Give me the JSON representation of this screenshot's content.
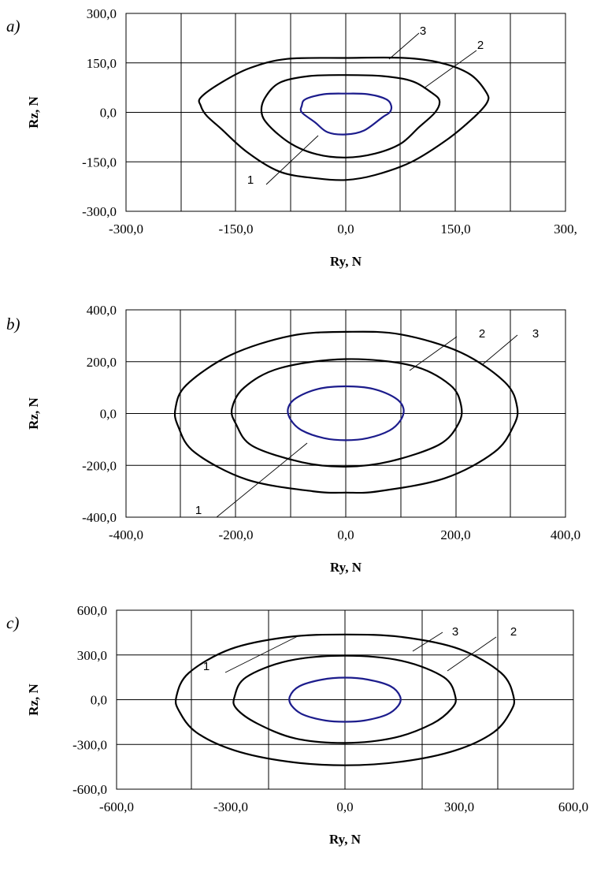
{
  "chart_data": [
    {
      "type": "line",
      "panel_label": "a)",
      "xlabel": "Ry, N",
      "ylabel": "Rz, N",
      "xlim": [
        -300,
        300
      ],
      "ylim": [
        -300,
        300
      ],
      "x_tick_labels": [
        "-300,0",
        "-150,0",
        "0,0",
        "150,0",
        "300,"
      ],
      "y_tick_labels": [
        "300,0",
        "150,0",
        "0,0",
        "-150,0",
        "-300,0"
      ],
      "grid": true,
      "series": [
        {
          "name": "1",
          "color": "#1c1c8c",
          "points": [
            [
              -60,
              20
            ],
            [
              -55,
              40
            ],
            [
              -30,
              55
            ],
            [
              0,
              57
            ],
            [
              30,
              55
            ],
            [
              55,
              40
            ],
            [
              62,
              20
            ],
            [
              60,
              0
            ],
            [
              50,
              -15
            ],
            [
              25,
              -55
            ],
            [
              0,
              -67
            ],
            [
              -25,
              -60
            ],
            [
              -42,
              -30
            ],
            [
              -60,
              0
            ]
          ]
        },
        {
          "name": "2",
          "color": "#000000",
          "points": [
            [
              -110,
              45
            ],
            [
              -90,
              90
            ],
            [
              -50,
              110
            ],
            [
              0,
              113
            ],
            [
              50,
              110
            ],
            [
              90,
              95
            ],
            [
              117,
              60
            ],
            [
              128,
              35
            ],
            [
              122,
              0
            ],
            [
              100,
              -45
            ],
            [
              75,
              -95
            ],
            [
              40,
              -125
            ],
            [
              0,
              -137
            ],
            [
              -40,
              -127
            ],
            [
              -75,
              -95
            ],
            [
              -105,
              -40
            ],
            [
              -115,
              0
            ]
          ]
        },
        {
          "name": "3",
          "color": "#000000",
          "points": [
            [
              -198,
              45
            ],
            [
              -170,
              90
            ],
            [
              -130,
              135
            ],
            [
              -80,
              162
            ],
            [
              0,
              165
            ],
            [
              80,
              165
            ],
            [
              130,
              150
            ],
            [
              170,
              115
            ],
            [
              192,
              60
            ],
            [
              193,
              30
            ],
            [
              175,
              -15
            ],
            [
              140,
              -80
            ],
            [
              90,
              -150
            ],
            [
              40,
              -190
            ],
            [
              0,
              -205
            ],
            [
              -40,
              -200
            ],
            [
              -90,
              -180
            ],
            [
              -135,
              -120
            ],
            [
              -170,
              -50
            ],
            [
              -190,
              -10
            ],
            [
              -198,
              20
            ]
          ]
        }
      ],
      "annotations": [
        "1",
        "2",
        "3"
      ]
    },
    {
      "type": "line",
      "panel_label": "b)",
      "xlabel": "Ry, N",
      "ylabel": "Rz, N",
      "xlim": [
        -400,
        400
      ],
      "ylim": [
        -400,
        400
      ],
      "x_tick_labels": [
        "-400,0",
        "-200,0",
        "0,0",
        "200,0",
        "400,0"
      ],
      "y_tick_labels": [
        "400,0",
        "200,0",
        "0,0",
        "-200,0",
        "-400,0"
      ],
      "grid": true,
      "series": [
        {
          "name": "1",
          "color": "#1c1c8c",
          "points": [
            [
              -105,
              20
            ],
            [
              -90,
              60
            ],
            [
              -50,
              95
            ],
            [
              0,
              105
            ],
            [
              50,
              95
            ],
            [
              90,
              60
            ],
            [
              105,
              20
            ],
            [
              100,
              -25
            ],
            [
              80,
              -65
            ],
            [
              40,
              -95
            ],
            [
              0,
              -103
            ],
            [
              -40,
              -95
            ],
            [
              -80,
              -65
            ],
            [
              -100,
              -25
            ]
          ]
        },
        {
          "name": "2",
          "color": "#000000",
          "points": [
            [
              -207,
              20
            ],
            [
              -185,
              100
            ],
            [
              -120,
              175
            ],
            [
              0,
              210
            ],
            [
              120,
              185
            ],
            [
              190,
              110
            ],
            [
              210,
              30
            ],
            [
              205,
              -40
            ],
            [
              170,
              -120
            ],
            [
              80,
              -185
            ],
            [
              0,
              -205
            ],
            [
              -80,
              -188
            ],
            [
              -170,
              -125
            ],
            [
              -200,
              -40
            ]
          ]
        },
        {
          "name": "3",
          "color": "#000000",
          "points": [
            [
              -310,
              20
            ],
            [
              -290,
              110
            ],
            [
              -210,
              225
            ],
            [
              -100,
              300
            ],
            [
              0,
              315
            ],
            [
              100,
              305
            ],
            [
              210,
              235
            ],
            [
              290,
              120
            ],
            [
              312,
              25
            ],
            [
              305,
              -50
            ],
            [
              270,
              -150
            ],
            [
              180,
              -250
            ],
            [
              60,
              -300
            ],
            [
              0,
              -305
            ],
            [
              -60,
              -300
            ],
            [
              -180,
              -255
            ],
            [
              -275,
              -150
            ],
            [
              -305,
              -50
            ]
          ]
        }
      ],
      "annotations": [
        "1",
        "2",
        "3"
      ]
    },
    {
      "type": "line",
      "panel_label": "c)",
      "xlabel": "Ry, N",
      "ylabel": "Rz, N",
      "xlim": [
        -600,
        600
      ],
      "ylim": [
        -600,
        600
      ],
      "x_tick_labels": [
        "-600,0",
        "-300,0",
        "0,0",
        "300,0",
        "600,0"
      ],
      "y_tick_labels": [
        "600,0",
        "300,0",
        "0,0",
        "-300,0",
        "-600,0"
      ],
      "grid": true,
      "series": [
        {
          "name": "1",
          "color": "#1c1c8c",
          "points": [
            [
              -145,
              20
            ],
            [
              -120,
              90
            ],
            [
              -60,
              135
            ],
            [
              0,
              148
            ],
            [
              60,
              135
            ],
            [
              120,
              90
            ],
            [
              145,
              20
            ],
            [
              140,
              -40
            ],
            [
              110,
              -100
            ],
            [
              50,
              -140
            ],
            [
              0,
              -148
            ],
            [
              -50,
              -140
            ],
            [
              -110,
              -100
            ],
            [
              -140,
              -40
            ]
          ]
        },
        {
          "name": "2",
          "color": "#000000",
          "points": [
            [
              -290,
              20
            ],
            [
              -260,
              150
            ],
            [
              -150,
              260
            ],
            [
              0,
              295
            ],
            [
              150,
              260
            ],
            [
              260,
              150
            ],
            [
              290,
              20
            ],
            [
              280,
              -60
            ],
            [
              230,
              -160
            ],
            [
              130,
              -255
            ],
            [
              0,
              -290
            ],
            [
              -130,
              -260
            ],
            [
              -230,
              -160
            ],
            [
              -285,
              -60
            ]
          ]
        },
        {
          "name": "3",
          "color": "#000000",
          "points": [
            [
              -443,
              20
            ],
            [
              -410,
              180
            ],
            [
              -300,
              340
            ],
            [
              -150,
              420
            ],
            [
              0,
              437
            ],
            [
              150,
              420
            ],
            [
              300,
              340
            ],
            [
              410,
              180
            ],
            [
              443,
              20
            ],
            [
              435,
              -80
            ],
            [
              390,
              -220
            ],
            [
              290,
              -340
            ],
            [
              150,
              -415
            ],
            [
              0,
              -440
            ],
            [
              -150,
              -415
            ],
            [
              -290,
              -340
            ],
            [
              -390,
              -220
            ],
            [
              -435,
              -80
            ]
          ]
        }
      ],
      "annotations": [
        "1",
        "2",
        "3"
      ]
    }
  ]
}
